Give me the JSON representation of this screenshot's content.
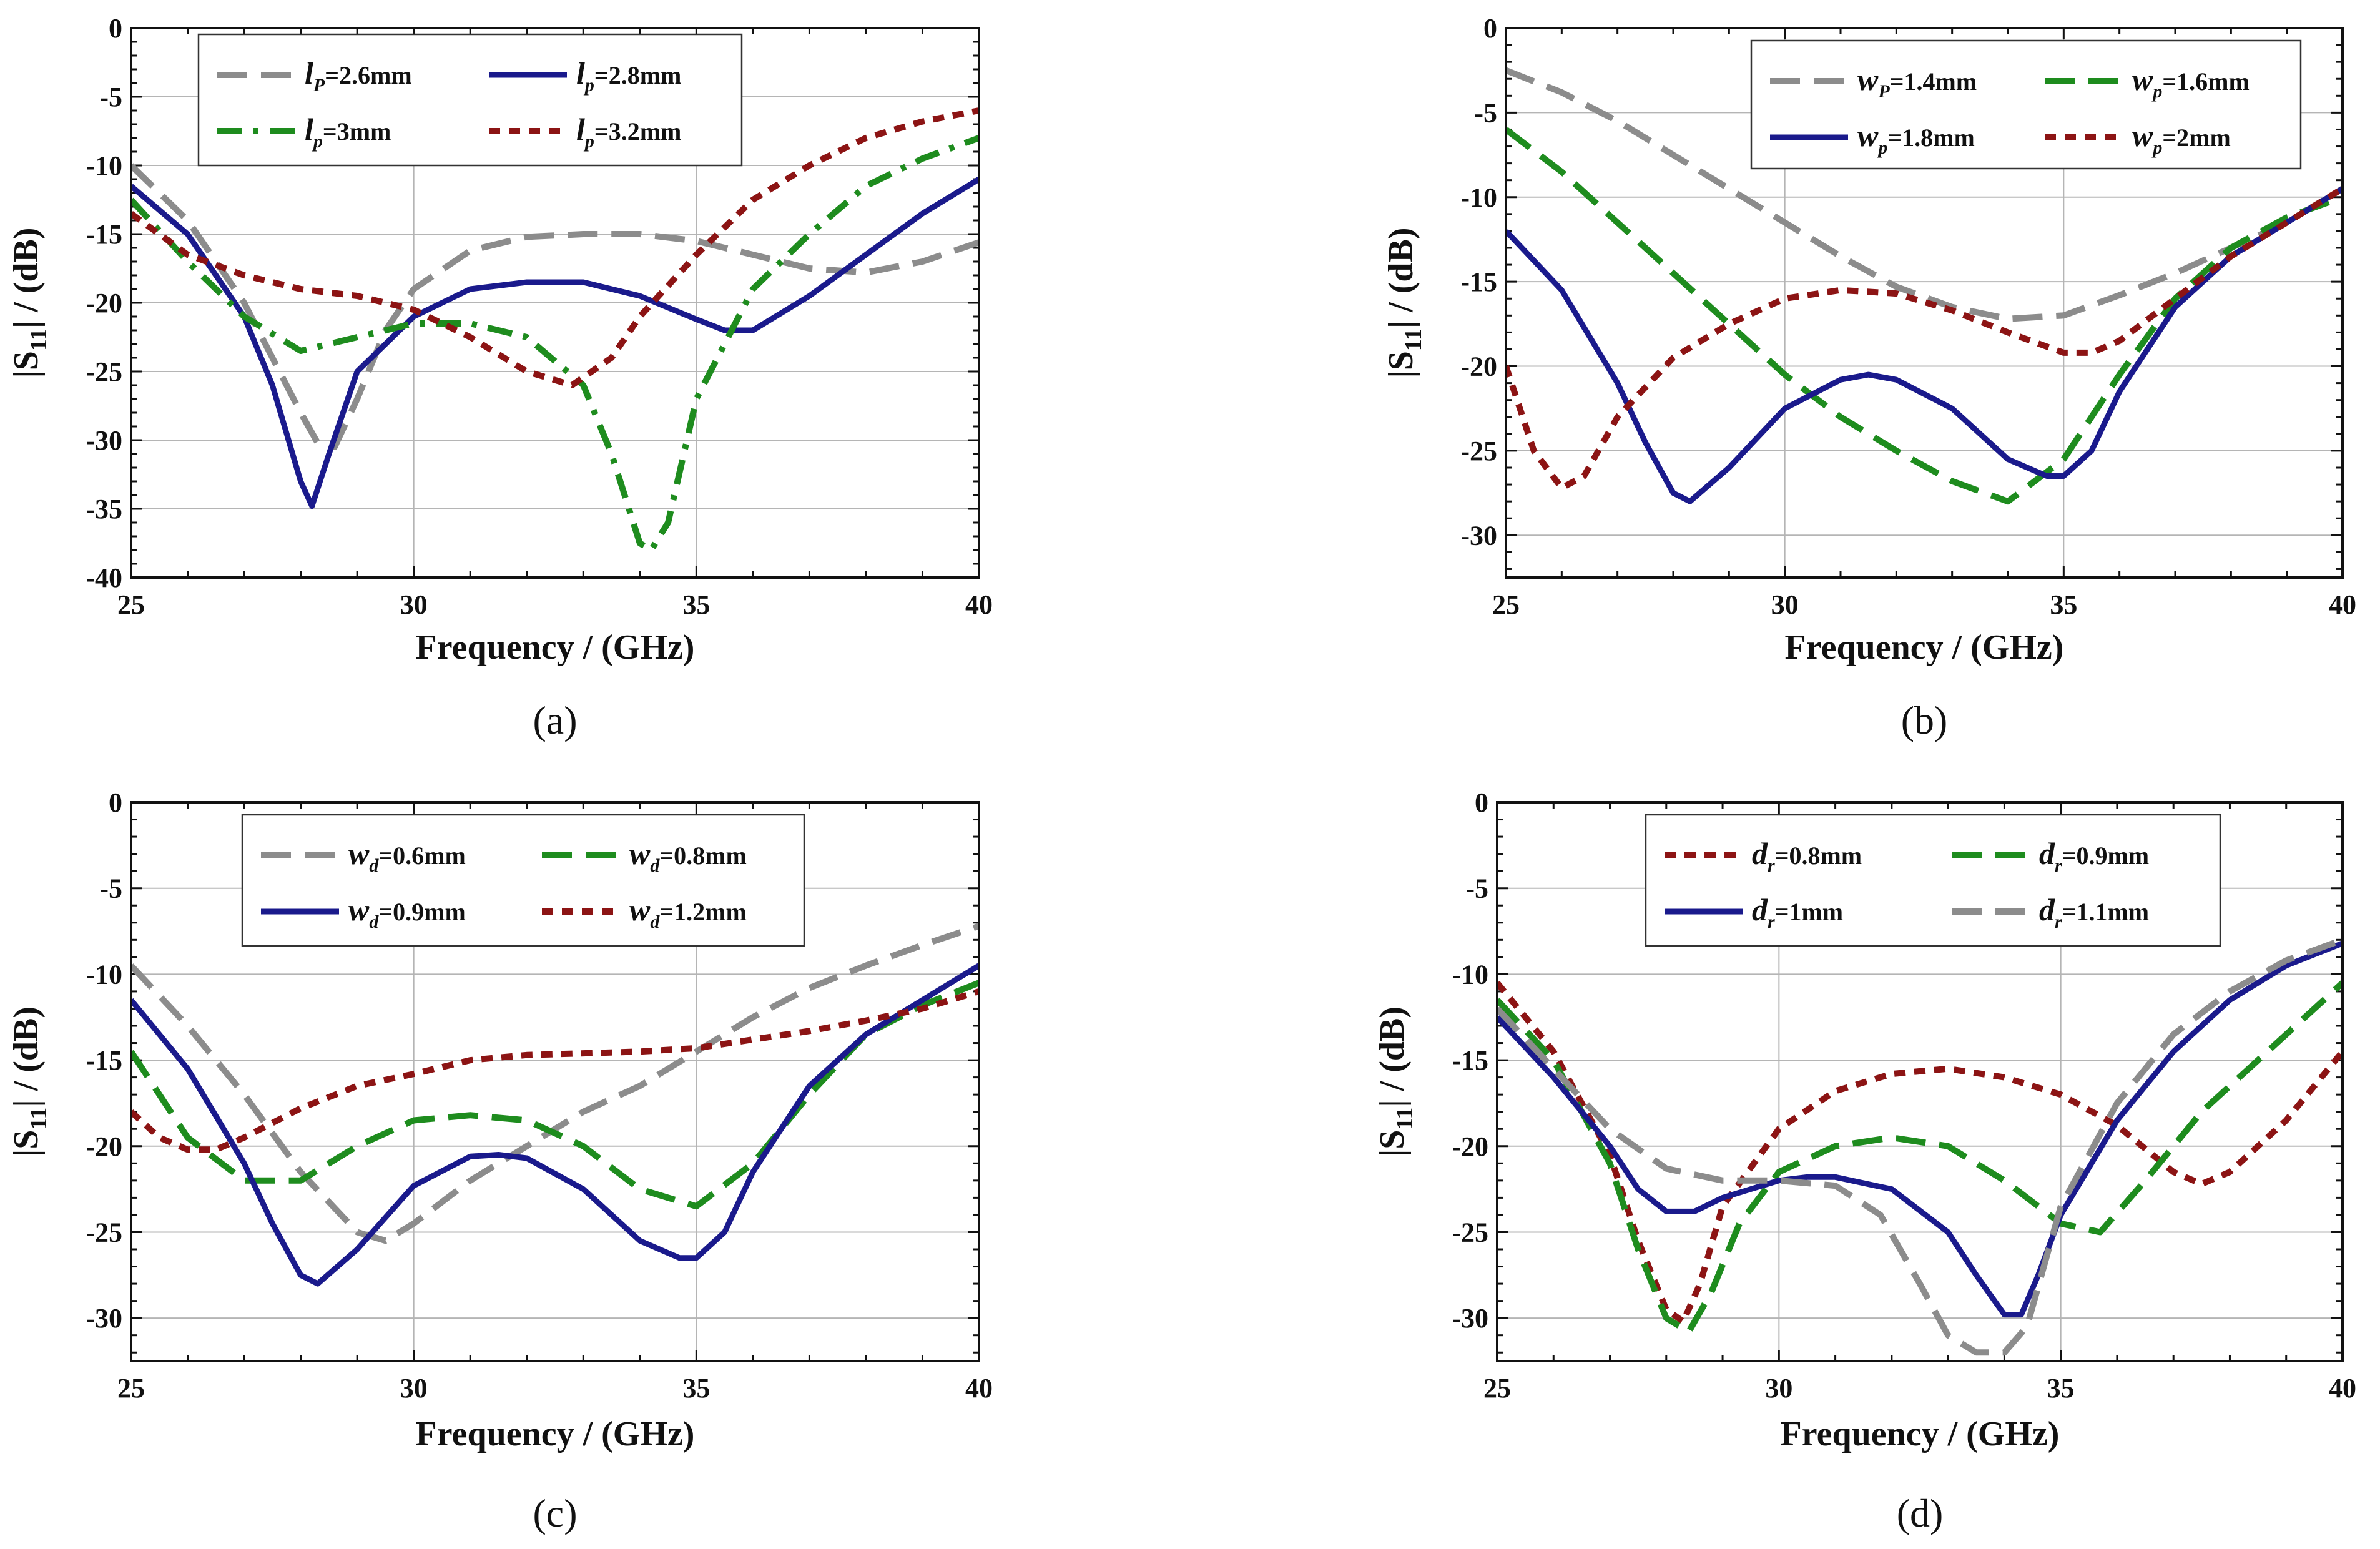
{
  "colors": {
    "gray": "#8c8c8c",
    "navy": "#1a1a8c",
    "green": "#1e8c1e",
    "darkred": "#8c1414"
  },
  "chart_data": [
    {
      "type": "line",
      "panel_label": "(a)",
      "xlabel": "Frequency / (GHz)",
      "ylabel": "|S11| / (dB)",
      "ylabel_main": "|S",
      "ylabel_sub": "11",
      "ylabel_tail": "| / (dB)",
      "xlim": [
        25,
        40
      ],
      "ylim": [
        -40,
        0
      ],
      "xticks": [
        25,
        30,
        35,
        40
      ],
      "yticks": [
        0,
        -5,
        -10,
        -15,
        -20,
        -25,
        -30,
        -35,
        -40
      ],
      "grid": true,
      "legend_position": "top",
      "series": [
        {
          "var": "l",
          "sub": "P",
          "value": "=2.6mm",
          "color": "#8c8c8c",
          "dash": "longdash",
          "x": [
            25,
            26,
            27,
            27.5,
            28,
            28.3,
            28.6,
            29,
            29.5,
            30,
            31,
            32,
            33,
            34,
            35,
            36,
            37,
            38,
            39,
            40
          ],
          "y": [
            -10,
            -14,
            -20,
            -24,
            -28,
            -30.2,
            -30.5,
            -27,
            -22,
            -19,
            -16.2,
            -15.2,
            -15,
            -15,
            -15.5,
            -16.5,
            -17.5,
            -17.8,
            -17,
            -15.6
          ]
        },
        {
          "var": "l",
          "sub": "p",
          "value": "=2.8mm",
          "color": "#1a1a8c",
          "dash": "solid",
          "x": [
            25,
            26,
            27,
            27.5,
            28,
            28.2,
            28.5,
            29,
            30,
            31,
            32,
            33,
            34,
            35,
            35.5,
            36,
            37,
            38,
            39,
            40
          ],
          "y": [
            -11.5,
            -15,
            -21,
            -26,
            -33,
            -34.8,
            -31,
            -25,
            -21,
            -19,
            -18.5,
            -18.5,
            -19.5,
            -21.2,
            -22,
            -22,
            -19.5,
            -16.5,
            -13.5,
            -11
          ]
        },
        {
          "var": "l",
          "sub": "p",
          "value": "=3mm",
          "color": "#1e8c1e",
          "dash": "dashdot",
          "x": [
            25,
            26,
            27,
            28,
            29,
            30,
            31,
            32,
            33,
            33.5,
            34,
            34.2,
            34.5,
            35,
            36,
            37,
            38,
            39,
            40
          ],
          "y": [
            -12.5,
            -17,
            -21,
            -23.5,
            -22.5,
            -21.5,
            -21.5,
            -22.5,
            -26,
            -31,
            -37.5,
            -38,
            -36,
            -27,
            -19,
            -15,
            -11.5,
            -9.5,
            -8
          ]
        },
        {
          "var": "l",
          "sub": "p",
          "value": "=3.2mm",
          "color": "#8c1414",
          "dash": "shortdash",
          "x": [
            25,
            26,
            27,
            28,
            29,
            30,
            31,
            32,
            32.8,
            33.5,
            34,
            35,
            36,
            37,
            38,
            39,
            40
          ],
          "y": [
            -13.5,
            -16.5,
            -18,
            -19,
            -19.5,
            -20.5,
            -22.5,
            -25,
            -26,
            -24,
            -21,
            -16.5,
            -12.5,
            -10,
            -8,
            -6.8,
            -6
          ]
        }
      ]
    },
    {
      "type": "line",
      "panel_label": "(b)",
      "xlabel": "Frequency / (GHz)",
      "ylabel": "|S11| / (dB)",
      "ylabel_main": "|S",
      "ylabel_sub": "11",
      "ylabel_tail": "| / (dB)",
      "xlim": [
        25,
        40
      ],
      "ylim": [
        -32.5,
        0
      ],
      "xticks": [
        25,
        30,
        35,
        40
      ],
      "yticks": [
        0,
        -5,
        -10,
        -15,
        -20,
        -25,
        -30
      ],
      "grid": true,
      "legend_position": "top-right",
      "series": [
        {
          "var": "w",
          "sub": "P",
          "value": "=1.4mm",
          "color": "#8c8c8c",
          "dash": "longdash",
          "x": [
            25,
            26,
            27,
            28,
            29,
            30,
            31,
            32,
            33,
            34,
            35,
            36,
            37,
            38,
            39,
            40
          ],
          "y": [
            -2.5,
            -3.8,
            -5.5,
            -7.5,
            -9.5,
            -11.5,
            -13.5,
            -15.3,
            -16.5,
            -17.2,
            -17,
            -15.8,
            -14.5,
            -13,
            -11.5,
            -9.5
          ]
        },
        {
          "var": "w",
          "sub": "p",
          "value": "=1.6mm",
          "color": "#1e8c1e",
          "dash": "longdash",
          "x": [
            25,
            26,
            27,
            28,
            29,
            30,
            31,
            32,
            33,
            34,
            35,
            36,
            37,
            38,
            39,
            40
          ],
          "y": [
            -6,
            -8.5,
            -11.5,
            -14.5,
            -17.5,
            -20.5,
            -23,
            -25,
            -26.8,
            -28,
            -25.5,
            -20.5,
            -16,
            -13,
            -11.2,
            -10
          ]
        },
        {
          "var": "w",
          "sub": "p",
          "value": "=1.8mm",
          "color": "#1a1a8c",
          "dash": "solid",
          "x": [
            25,
            26,
            27,
            27.5,
            28,
            28.3,
            29,
            30,
            31,
            31.5,
            32,
            33,
            34,
            34.7,
            35,
            35.5,
            36,
            37,
            38,
            39,
            40
          ],
          "y": [
            -12,
            -15.5,
            -21,
            -24.5,
            -27.5,
            -28,
            -26,
            -22.5,
            -20.8,
            -20.5,
            -20.8,
            -22.5,
            -25.5,
            -26.5,
            -26.5,
            -25,
            -21.5,
            -16.5,
            -13.5,
            -11.5,
            -9.5
          ]
        },
        {
          "var": "w",
          "sub": "p",
          "value": "=2mm",
          "color": "#8c1414",
          "dash": "shortdash",
          "x": [
            25,
            25.5,
            26,
            26.4,
            27,
            28,
            29,
            30,
            31,
            32,
            33,
            34,
            35,
            35.5,
            36,
            37,
            38,
            39,
            40
          ],
          "y": [
            -20,
            -25,
            -27.2,
            -26.5,
            -23,
            -19.5,
            -17.5,
            -16,
            -15.5,
            -15.7,
            -16.7,
            -18,
            -19.2,
            -19.2,
            -18.5,
            -16,
            -13.5,
            -11.5,
            -9.5
          ]
        }
      ]
    },
    {
      "type": "line",
      "panel_label": "(c)",
      "xlabel": "Frequency / (GHz)",
      "ylabel": "|S11| / (dB)",
      "ylabel_main": "|S",
      "ylabel_sub": "11",
      "ylabel_tail": "| / (dB)",
      "xlim": [
        25,
        40
      ],
      "ylim": [
        -32.5,
        0
      ],
      "xticks": [
        25,
        30,
        35,
        40
      ],
      "yticks": [
        0,
        -5,
        -10,
        -15,
        -20,
        -25,
        -30
      ],
      "grid": true,
      "legend_position": "top",
      "series": [
        {
          "var": "w",
          "sub": "d",
          "value": "=0.6mm",
          "color": "#8c8c8c",
          "dash": "longdash",
          "x": [
            25,
            26,
            27,
            28,
            29,
            29.5,
            30,
            31,
            32,
            33,
            34,
            35,
            36,
            37,
            38,
            39,
            40
          ],
          "y": [
            -9.5,
            -13,
            -17,
            -21.5,
            -25,
            -25.5,
            -24.5,
            -22,
            -20,
            -18,
            -16.5,
            -14.5,
            -12.5,
            -10.8,
            -9.5,
            -8.3,
            -7.2
          ]
        },
        {
          "var": "w",
          "sub": "d",
          "value": "=0.8mm",
          "color": "#1e8c1e",
          "dash": "longdash",
          "x": [
            25,
            26,
            27,
            28,
            29,
            30,
            31,
            32,
            33,
            34,
            35,
            36,
            37,
            38,
            39,
            40
          ],
          "y": [
            -14.5,
            -19.5,
            -22,
            -22,
            -20,
            -18.5,
            -18.2,
            -18.5,
            -20,
            -22.5,
            -23.5,
            -21,
            -17,
            -13.5,
            -11.8,
            -10.5
          ]
        },
        {
          "var": "w",
          "sub": "d",
          "value": "=0.9mm",
          "color": "#1a1a8c",
          "dash": "solid",
          "x": [
            25,
            26,
            27,
            27.5,
            28,
            28.3,
            29,
            30,
            31,
            31.5,
            32,
            33,
            34,
            34.7,
            35,
            35.5,
            36,
            37,
            38,
            39,
            40
          ],
          "y": [
            -11.5,
            -15.5,
            -21,
            -24.5,
            -27.5,
            -28,
            -26,
            -22.3,
            -20.6,
            -20.5,
            -20.7,
            -22.5,
            -25.5,
            -26.5,
            -26.5,
            -25,
            -21.5,
            -16.5,
            -13.5,
            -11.5,
            -9.5
          ]
        },
        {
          "var": "w",
          "sub": "d",
          "value": "=1.2mm",
          "color": "#8c1414",
          "dash": "shortdash",
          "x": [
            25,
            25.5,
            26,
            26.5,
            27,
            28,
            29,
            30,
            31,
            32,
            33,
            34,
            35,
            36,
            37,
            38,
            39,
            40
          ],
          "y": [
            -18,
            -19.5,
            -20.2,
            -20.2,
            -19.5,
            -17.8,
            -16.5,
            -15.8,
            -15,
            -14.7,
            -14.6,
            -14.5,
            -14.3,
            -13.8,
            -13.3,
            -12.7,
            -12,
            -11
          ]
        }
      ]
    },
    {
      "type": "line",
      "panel_label": "(d)",
      "xlabel": "Frequency / (GHz)",
      "ylabel": "|S11| / (dB)",
      "ylabel_main": "|S",
      "ylabel_sub": "11",
      "ylabel_tail": "| / (dB)",
      "xlim": [
        25,
        40
      ],
      "ylim": [
        -32.5,
        0
      ],
      "xticks": [
        25,
        30,
        35,
        40
      ],
      "yticks": [
        0,
        -5,
        -10,
        -15,
        -20,
        -25,
        -30
      ],
      "grid": true,
      "legend_position": "top",
      "series": [
        {
          "var": "d",
          "sub": "r",
          "value": "=0.8mm",
          "color": "#8c1414",
          "dash": "shortdash",
          "x": [
            25,
            26,
            27,
            27.5,
            28,
            28.3,
            28.6,
            29,
            30,
            31,
            32,
            33,
            34,
            35,
            36,
            37,
            37.5,
            38,
            39,
            40
          ],
          "y": [
            -10.5,
            -14.5,
            -20.5,
            -25.5,
            -29.5,
            -30.2,
            -28,
            -23.5,
            -19,
            -16.8,
            -15.8,
            -15.5,
            -16,
            -17,
            -18.8,
            -21.5,
            -22.2,
            -21.5,
            -18.5,
            -14.5
          ]
        },
        {
          "var": "d",
          "sub": "r",
          "value": "=0.9mm",
          "color": "#1e8c1e",
          "dash": "longdash",
          "x": [
            25,
            26,
            27,
            27.5,
            28,
            28.4,
            28.8,
            29.3,
            30,
            31,
            32,
            33,
            34,
            35,
            35.7,
            36.5,
            37.5,
            38.5,
            40
          ],
          "y": [
            -11.5,
            -15,
            -21,
            -26,
            -30,
            -30.8,
            -28.5,
            -24.5,
            -21.5,
            -20,
            -19.5,
            -20,
            -22,
            -24.5,
            -25,
            -22,
            -18,
            -15,
            -10.5
          ]
        },
        {
          "var": "d",
          "sub": "r",
          "value": "=1mm",
          "color": "#1a1a8c",
          "dash": "solid",
          "x": [
            25,
            26,
            27,
            27.5,
            28,
            28.5,
            29,
            30,
            30.5,
            31,
            32,
            33,
            33.5,
            34,
            34.3,
            34.6,
            35,
            36,
            37,
            38,
            39,
            40
          ],
          "y": [
            -12.5,
            -16,
            -20,
            -22.5,
            -23.8,
            -23.8,
            -23,
            -22,
            -21.8,
            -21.8,
            -22.5,
            -25,
            -27.5,
            -29.8,
            -29.8,
            -27.5,
            -24,
            -18.5,
            -14.5,
            -11.5,
            -9.5,
            -8.2
          ]
        },
        {
          "var": "d",
          "sub": "r",
          "value": "=1.1mm",
          "color": "#8c8c8c",
          "dash": "longdash",
          "x": [
            25,
            26,
            27,
            28,
            29,
            30,
            31,
            31.8,
            32.5,
            33,
            33.5,
            34,
            34.4,
            35,
            36,
            37,
            38,
            39,
            40
          ],
          "y": [
            -12,
            -15.5,
            -19,
            -21.3,
            -22,
            -22,
            -22.3,
            -24,
            -28,
            -31,
            -32,
            -32,
            -30.5,
            -23.5,
            -17.5,
            -13.5,
            -11,
            -9.2,
            -8
          ]
        }
      ]
    }
  ]
}
